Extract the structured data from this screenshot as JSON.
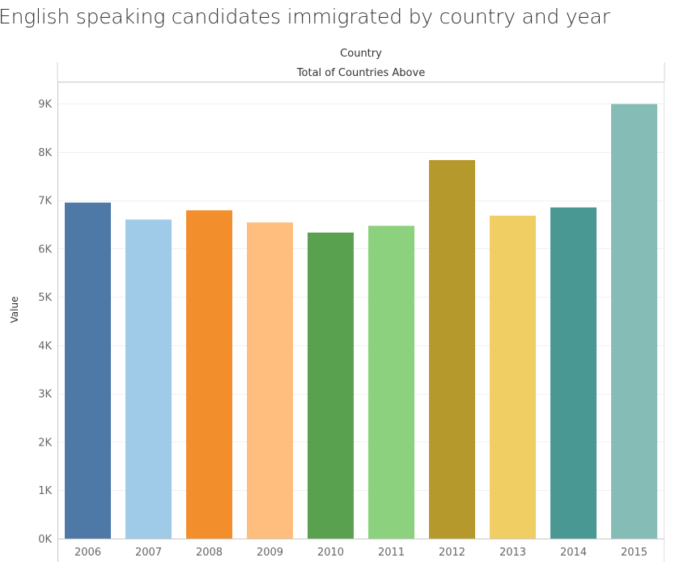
{
  "title": "English speaking candidates immigrated by country and year",
  "chart_data": {
    "type": "bar",
    "title": "English speaking candidates immigrated by country and year",
    "header": "Country",
    "subheader": "Total of Countries Above",
    "ylabel": "Value",
    "xlabel": "",
    "categories": [
      "2006",
      "2007",
      "2008",
      "2009",
      "2010",
      "2011",
      "2012",
      "2013",
      "2014",
      "2015"
    ],
    "values": [
      6950,
      6600,
      6790,
      6540,
      6330,
      6470,
      7830,
      6680,
      6850,
      8990
    ],
    "colors": [
      "#4e79a7",
      "#a0cbe8",
      "#f28e2b",
      "#ffbe7d",
      "#59a14f",
      "#8cd17d",
      "#b6992d",
      "#f1ce63",
      "#499894",
      "#86bcb6"
    ],
    "ylim": [
      0,
      9500
    ],
    "yticks": [
      0,
      1000,
      2000,
      3000,
      4000,
      5000,
      6000,
      7000,
      8000,
      9000
    ],
    "ytick_labels": [
      "0K",
      "1K",
      "2K",
      "3K",
      "4K",
      "5K",
      "6K",
      "7K",
      "8K",
      "9K"
    ],
    "grid": true,
    "legend": "none"
  }
}
